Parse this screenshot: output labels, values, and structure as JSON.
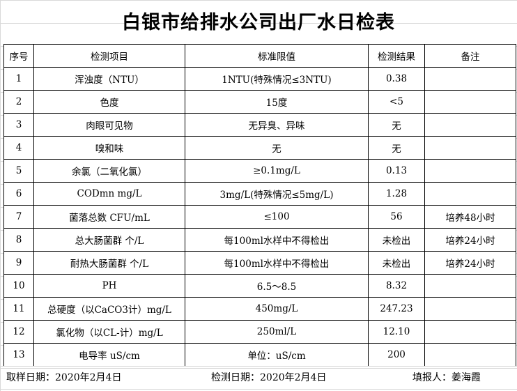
{
  "title": "白银市给排水公司出厂水日检表",
  "headers": [
    "序号",
    "检测项目",
    "标准限值",
    "检测结果",
    "备注"
  ],
  "rows": [
    [
      "1",
      "浑浊度（NTU）",
      "1NTU(特殊情况≤3NTU)",
      "0.38",
      ""
    ],
    [
      "2",
      "色度",
      "15度",
      "<5",
      ""
    ],
    [
      "3",
      "肉眼可见物",
      "无异臭、异味",
      "无",
      ""
    ],
    [
      "4",
      "嗅和味",
      "无",
      "无",
      ""
    ],
    [
      "5",
      "余氯（二氧化氯）",
      "≥0.1mg/L",
      "0.13",
      ""
    ],
    [
      "6",
      "CODmn mg/L",
      "3mg/L(特殊情况≤5mg/L)",
      "1.28",
      ""
    ],
    [
      "7",
      "菌落总数  CFU/mL",
      "≤100",
      "56",
      "培养48小时"
    ],
    [
      "8",
      "总大肠菌群 个/L",
      "每100ml水样中不得检出",
      "未检出",
      "培养24小时"
    ],
    [
      "9",
      "耐热大肠菌群 个/L",
      "每100ml水样中不得检出",
      "未检出",
      "培养24小时"
    ],
    [
      "10",
      "PH",
      "6.5～8.5",
      "8.32",
      ""
    ],
    [
      "11",
      "总硬度（以CaCO3计）mg/L",
      "450mg/L",
      "247.23",
      ""
    ],
    [
      "12",
      "氯化物（以CL-计）mg/L",
      "250ml/L",
      "12.10",
      ""
    ],
    [
      "13",
      "电导率 uS/cm",
      "单位：uS/cm",
      "200",
      ""
    ]
  ],
  "footer": {
    "sample_date": "取样日期：2020年2月4日",
    "test_date": "检测日期：2020年2月4日",
    "reporter": "填报人：姜海霞"
  }
}
